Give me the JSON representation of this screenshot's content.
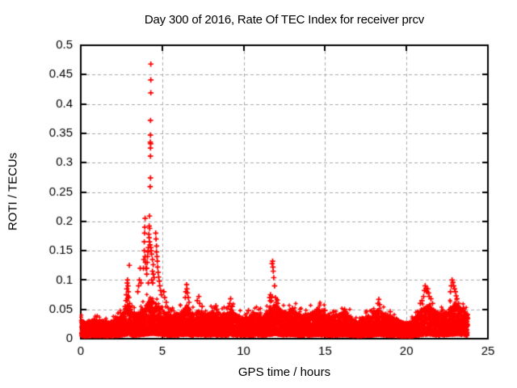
{
  "page": {
    "background": "#ffffff"
  },
  "chart_data": {
    "type": "scatter",
    "title": "Day 300 of 2016, Rate Of TEC Index for receiver prcv",
    "xlabel": "GPS time / hours",
    "ylabel": "ROTI / TECUs",
    "xlim": [
      0,
      25
    ],
    "ylim": [
      0,
      0.5
    ],
    "x_ticks": [
      0,
      5,
      10,
      15,
      20,
      25
    ],
    "x_tick_labels": [
      "0",
      "5",
      "10",
      "15",
      "20",
      "25"
    ],
    "y_ticks": [
      0,
      0.05,
      0.1,
      0.15,
      0.2,
      0.25,
      0.3,
      0.35,
      0.4,
      0.45,
      0.5
    ],
    "y_tick_labels": [
      "0",
      "0.05",
      "0.1",
      "0.15",
      "0.2",
      "0.25",
      "0.3",
      "0.35",
      "0.4",
      "0.45",
      "0.5"
    ],
    "grid": true,
    "grid_style": "dashed",
    "grid_color": "#aaaaaa",
    "axis_color": "#000000",
    "legend": "none",
    "series": [
      {
        "name": "ROTI",
        "marker": "plus",
        "color": "#ff0000",
        "x_data_range": [
          0,
          23.8
        ],
        "outlier_points": [
          [
            2.72,
            0.055
          ],
          [
            2.78,
            0.065
          ],
          [
            2.8,
            0.075
          ],
          [
            2.83,
            0.085
          ],
          [
            2.85,
            0.095
          ],
          [
            2.87,
            0.1
          ],
          [
            2.9,
            0.09
          ],
          [
            2.92,
            0.08
          ],
          [
            2.95,
            0.07
          ],
          [
            2.98,
            0.125
          ],
          [
            3.0,
            0.06
          ],
          [
            3.05,
            0.05
          ],
          [
            3.5,
            0.08
          ],
          [
            3.55,
            0.09
          ],
          [
            3.6,
            0.1
          ],
          [
            3.65,
            0.12
          ],
          [
            3.7,
            0.095
          ],
          [
            3.85,
            0.12
          ],
          [
            3.87,
            0.135
          ],
          [
            3.9,
            0.15
          ],
          [
            3.9,
            0.165
          ],
          [
            3.92,
            0.18
          ],
          [
            3.93,
            0.19
          ],
          [
            3.95,
            0.205
          ],
          [
            3.95,
            0.14
          ],
          [
            3.97,
            0.13
          ],
          [
            4.0,
            0.12
          ],
          [
            4.05,
            0.11
          ],
          [
            4.3,
            0.468
          ],
          [
            4.3,
            0.441
          ],
          [
            4.3,
            0.419
          ],
          [
            4.28,
            0.372
          ],
          [
            4.28,
            0.347
          ],
          [
            4.27,
            0.335
          ],
          [
            4.29,
            0.332
          ],
          [
            4.28,
            0.325
          ],
          [
            4.28,
            0.311
          ],
          [
            4.28,
            0.274
          ],
          [
            4.26,
            0.259
          ],
          [
            4.22,
            0.209
          ],
          [
            4.2,
            0.192
          ],
          [
            4.23,
            0.188
          ],
          [
            4.18,
            0.178
          ],
          [
            4.2,
            0.172
          ],
          [
            4.22,
            0.165
          ],
          [
            4.25,
            0.16
          ],
          [
            4.15,
            0.155
          ],
          [
            4.12,
            0.148
          ],
          [
            4.1,
            0.14
          ],
          [
            4.3,
            0.155
          ],
          [
            4.32,
            0.15
          ],
          [
            4.35,
            0.144
          ],
          [
            4.4,
            0.135
          ],
          [
            4.45,
            0.126
          ],
          [
            4.08,
            0.13
          ],
          [
            4.05,
            0.12
          ],
          [
            4.4,
            0.115
          ],
          [
            4.45,
            0.11
          ],
          [
            4.5,
            0.104
          ],
          [
            4.35,
            0.1
          ],
          [
            4.15,
            0.095
          ],
          [
            4.42,
            0.095
          ],
          [
            4.6,
            0.18
          ],
          [
            4.62,
            0.17
          ],
          [
            4.65,
            0.158
          ],
          [
            4.65,
            0.148
          ],
          [
            4.68,
            0.14
          ],
          [
            4.7,
            0.132
          ],
          [
            4.72,
            0.122
          ],
          [
            4.75,
            0.113
          ],
          [
            4.78,
            0.105
          ],
          [
            4.82,
            0.098
          ],
          [
            4.85,
            0.09
          ],
          [
            4.9,
            0.082
          ],
          [
            4.95,
            0.075
          ],
          [
            5.1,
            0.08
          ],
          [
            5.15,
            0.07
          ],
          [
            5.25,
            0.062
          ],
          [
            6.42,
            0.07
          ],
          [
            6.45,
            0.08
          ],
          [
            6.5,
            0.092
          ],
          [
            6.52,
            0.085
          ],
          [
            6.55,
            0.078
          ],
          [
            6.6,
            0.07
          ],
          [
            6.65,
            0.062
          ],
          [
            7.15,
            0.065
          ],
          [
            7.25,
            0.072
          ],
          [
            7.3,
            0.06
          ],
          [
            7.45,
            0.055
          ],
          [
            8.3,
            0.056
          ],
          [
            8.35,
            0.05
          ],
          [
            9.15,
            0.06
          ],
          [
            9.2,
            0.068
          ],
          [
            9.3,
            0.055
          ],
          [
            10.3,
            0.048
          ],
          [
            11.6,
            0.07
          ],
          [
            11.65,
            0.075
          ],
          [
            11.7,
            0.065
          ],
          [
            11.75,
            0.128
          ],
          [
            11.78,
            0.132
          ],
          [
            11.8,
            0.122
          ],
          [
            11.82,
            0.115
          ],
          [
            11.85,
            0.104
          ],
          [
            11.9,
            0.09
          ],
          [
            11.95,
            0.07
          ],
          [
            12.0,
            0.062
          ],
          [
            12.05,
            0.055
          ],
          [
            13.0,
            0.052
          ],
          [
            13.05,
            0.048
          ],
          [
            14.5,
            0.05
          ],
          [
            15.0,
            0.048
          ],
          [
            15.5,
            0.045
          ],
          [
            16.2,
            0.05
          ],
          [
            18.25,
            0.06
          ],
          [
            18.3,
            0.067
          ],
          [
            18.35,
            0.058
          ],
          [
            19.0,
            0.046
          ],
          [
            20.85,
            0.06
          ],
          [
            20.95,
            0.065
          ],
          [
            21.05,
            0.072
          ],
          [
            21.1,
            0.082
          ],
          [
            21.15,
            0.09
          ],
          [
            21.2,
            0.086
          ],
          [
            21.25,
            0.08
          ],
          [
            21.3,
            0.085
          ],
          [
            21.35,
            0.078
          ],
          [
            21.4,
            0.072
          ],
          [
            21.5,
            0.068
          ],
          [
            21.6,
            0.06
          ],
          [
            22.7,
            0.08
          ],
          [
            22.75,
            0.09
          ],
          [
            22.8,
            0.1
          ],
          [
            22.85,
            0.096
          ],
          [
            22.9,
            0.09
          ],
          [
            22.95,
            0.085
          ],
          [
            23.0,
            0.08
          ],
          [
            23.05,
            0.073
          ],
          [
            23.1,
            0.068
          ],
          [
            23.2,
            0.06
          ],
          [
            23.5,
            0.052
          ],
          [
            23.6,
            0.046
          ]
        ],
        "dense_band_envelope": {
          "hours": [
            0,
            0.3,
            0.8,
            1.3,
            1.8,
            2.3,
            2.6,
            2.9,
            3.2,
            3.6,
            3.9,
            4.3,
            4.7,
            5.0,
            5.4,
            5.8,
            6.2,
            6.5,
            6.9,
            7.3,
            7.7,
            8.1,
            8.5,
            8.9,
            9.2,
            9.6,
            10.0,
            10.4,
            10.8,
            11.2,
            11.6,
            11.9,
            12.3,
            12.7,
            13.1,
            13.5,
            13.9,
            14.3,
            14.7,
            15.1,
            15.5,
            15.9,
            16.3,
            16.7,
            17.0,
            17.4,
            17.8,
            18.2,
            18.6,
            19.0,
            19.4,
            19.8,
            20.2,
            20.6,
            21.0,
            21.4,
            21.8,
            22.2,
            22.6,
            23.0,
            23.4,
            23.8
          ],
          "top_values": [
            0.032,
            0.028,
            0.032,
            0.03,
            0.028,
            0.034,
            0.045,
            0.06,
            0.042,
            0.044,
            0.055,
            0.065,
            0.058,
            0.05,
            0.04,
            0.042,
            0.046,
            0.055,
            0.042,
            0.048,
            0.042,
            0.044,
            0.04,
            0.042,
            0.05,
            0.04,
            0.036,
            0.04,
            0.042,
            0.04,
            0.052,
            0.058,
            0.048,
            0.044,
            0.048,
            0.04,
            0.042,
            0.046,
            0.048,
            0.042,
            0.038,
            0.042,
            0.046,
            0.034,
            0.026,
            0.036,
            0.04,
            0.05,
            0.042,
            0.038,
            0.034,
            0.028,
            0.026,
            0.038,
            0.05,
            0.058,
            0.046,
            0.042,
            0.05,
            0.06,
            0.05,
            0.04
          ]
        }
      }
    ]
  }
}
